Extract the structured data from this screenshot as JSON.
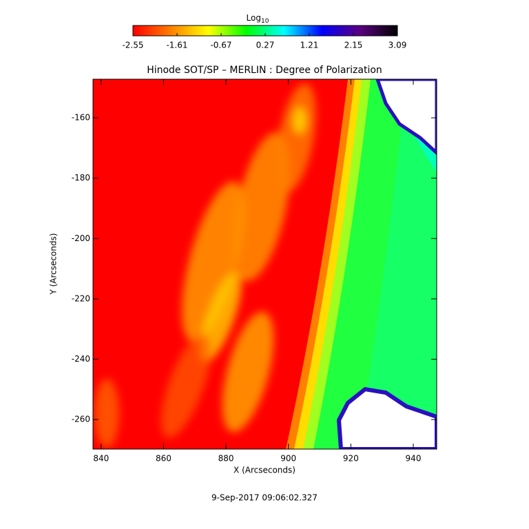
{
  "chart_data": {
    "type": "heatmap",
    "title": "Hinode SOT/SP – MERLIN : Degree of Polarization",
    "x_label": "X (Arcseconds)",
    "y_label": "Y (Arcseconds)",
    "footer": "9-Sep-2017 09:06:02.327",
    "colorbar_label": "Log",
    "colorbar_label_subscript": "10",
    "colorbar_lim": [
      -2.55,
      3.09
    ],
    "colorbar_ticks": [
      -2.55,
      -1.61,
      -0.67,
      0.27,
      1.21,
      2.15,
      3.09
    ],
    "colormap": [
      "#ff0000",
      "#ff7f00",
      "#ffff00",
      "#00ff00",
      "#00ffff",
      "#0000ff",
      "#5a0080",
      "#000000"
    ],
    "xlim": [
      837.4,
      947.5
    ],
    "xticks": [
      840,
      860,
      880,
      900,
      920,
      940
    ],
    "ylim": [
      -269.8,
      -147.2
    ],
    "yticks": [
      -160,
      -180,
      -200,
      -220,
      -240,
      -260
    ]
  }
}
